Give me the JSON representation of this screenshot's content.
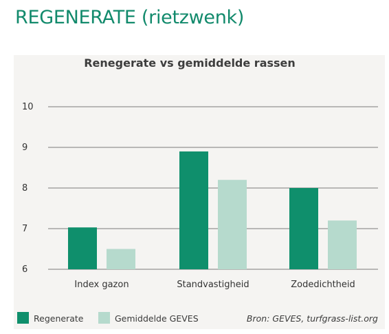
{
  "page": {
    "heading": "REGENERATE (rietzwenk)"
  },
  "chart_data": {
    "type": "bar",
    "title": "Renegerate vs gemiddelde rassen",
    "categories": [
      "Index gazon",
      "Standvastigheid",
      "Zodedichtheid"
    ],
    "series": [
      {
        "name": "Regenerate",
        "values": [
          7.03,
          8.9,
          8.0
        ],
        "color": "#0f8f6c"
      },
      {
        "name": "Gemiddelde GEVES",
        "values": [
          6.5,
          8.2,
          7.2
        ],
        "color": "#b6dacd"
      }
    ],
    "ylim": [
      6,
      10
    ],
    "yticks": [
      6,
      7,
      8,
      9,
      10
    ],
    "grid": true,
    "legend_position": "bottom-left",
    "xlabel": "",
    "ylabel": "",
    "source": "Bron: GEVES, turfgrass-list.org",
    "colors": {
      "heading": "#128a6c",
      "background": "#f5f4f2",
      "grid": "#7a7a7a"
    }
  }
}
